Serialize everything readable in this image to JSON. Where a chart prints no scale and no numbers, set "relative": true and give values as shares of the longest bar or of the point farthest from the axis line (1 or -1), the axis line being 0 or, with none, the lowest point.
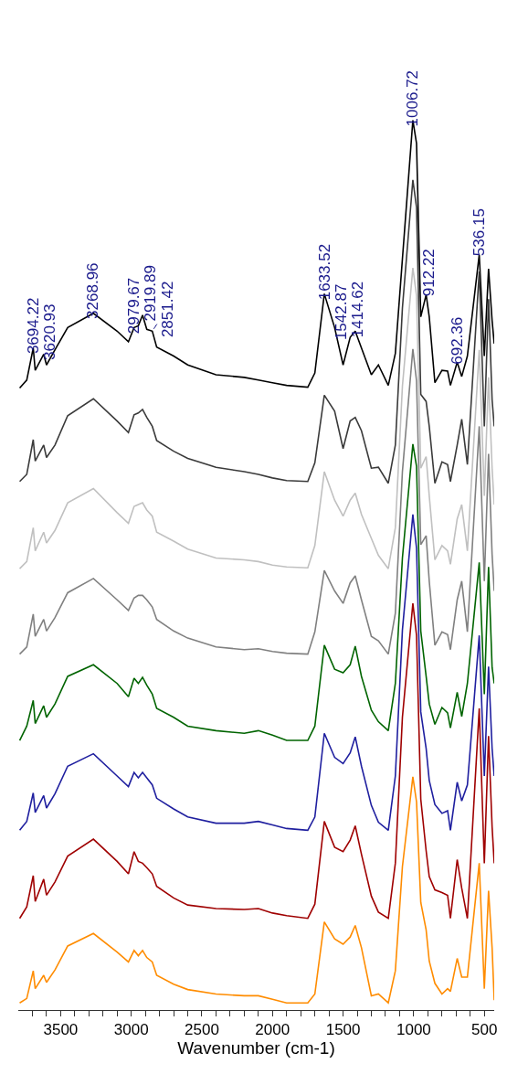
{
  "chart_data": {
    "type": "line",
    "relative": true,
    "xlabel": "Wavenumber (cm-1)",
    "xlim": [
      3800,
      430
    ],
    "xticks": [
      {
        "value": 3700,
        "label": null
      },
      {
        "value": 3600,
        "label": null
      },
      3500,
      {
        "value": 3400,
        "label": null
      },
      {
        "value": 3300,
        "label": null
      },
      {
        "value": 3200,
        "label": null
      },
      {
        "value": 3100,
        "label": null
      },
      3000,
      {
        "value": 2900,
        "label": null
      },
      {
        "value": 2800,
        "label": null
      },
      {
        "value": 2700,
        "label": null
      },
      {
        "value": 2600,
        "label": null
      },
      2500,
      {
        "value": 2400,
        "label": null
      },
      {
        "value": 2300,
        "label": null
      },
      {
        "value": 2200,
        "label": null
      },
      {
        "value": 2100,
        "label": null
      },
      2000,
      {
        "value": 1900,
        "label": null
      },
      {
        "value": 1800,
        "label": null
      },
      {
        "value": 1700,
        "label": null
      },
      {
        "value": 1600,
        "label": null
      },
      1500,
      {
        "value": 1400,
        "label": null
      },
      {
        "value": 1300,
        "label": null
      },
      {
        "value": 1200,
        "label": null
      },
      {
        "value": 1100,
        "label": null
      },
      1000,
      {
        "value": 900,
        "label": null
      },
      {
        "value": 800,
        "label": null
      },
      {
        "value": 700,
        "label": null
      },
      {
        "value": 600,
        "label": null
      },
      500
    ],
    "tick_labels": "x",
    "x": [
      3790,
      3740,
      3694,
      3680,
      3620,
      3600,
      3540,
      3450,
      3268,
      3100,
      3020,
      2980,
      2950,
      2920,
      2890,
      2851,
      2820,
      2700,
      2600,
      2400,
      2200,
      2100,
      2000,
      1900,
      1750,
      1700,
      1633,
      1560,
      1500,
      1450,
      1414,
      1370,
      1300,
      1250,
      1180,
      1130,
      1080,
      1006,
      980,
      950,
      912,
      890,
      850,
      800,
      760,
      740,
      692,
      660,
      620,
      536,
      500,
      470,
      445,
      430
    ],
    "series": [
      {
        "color": "#000000",
        "values": [
          0.699,
          0.708,
          0.744,
          0.719,
          0.737,
          0.725,
          0.742,
          0.767,
          0.783,
          0.763,
          0.751,
          0.767,
          0.769,
          0.781,
          0.765,
          0.763,
          0.745,
          0.735,
          0.725,
          0.714,
          0.711,
          0.708,
          0.705,
          0.702,
          0.7,
          0.716,
          0.805,
          0.767,
          0.725,
          0.756,
          0.763,
          0.744,
          0.714,
          0.725,
          0.702,
          0.738,
          0.844,
          1.0,
          0.974,
          0.779,
          0.804,
          0.779,
          0.705,
          0.719,
          0.718,
          0.702,
          0.728,
          0.712,
          0.735,
          0.849,
          0.735,
          0.833,
          0.775,
          0.749
        ]
      },
      {
        "color": "#3a3a3a",
        "values": [
          0.594,
          0.602,
          0.641,
          0.617,
          0.635,
          0.621,
          0.635,
          0.668,
          0.687,
          0.662,
          0.649,
          0.669,
          0.671,
          0.675,
          0.666,
          0.656,
          0.64,
          0.628,
          0.62,
          0.61,
          0.605,
          0.602,
          0.598,
          0.595,
          0.594,
          0.615,
          0.691,
          0.673,
          0.631,
          0.662,
          0.666,
          0.651,
          0.609,
          0.61,
          0.592,
          0.635,
          0.789,
          0.933,
          0.902,
          0.692,
          0.684,
          0.656,
          0.592,
          0.616,
          0.613,
          0.594,
          0.635,
          0.664,
          0.613,
          0.83,
          0.656,
          0.799,
          0.686,
          0.656
        ]
      },
      {
        "color": "#c0c0c0",
        "values": [
          0.496,
          0.504,
          0.542,
          0.516,
          0.537,
          0.525,
          0.539,
          0.57,
          0.586,
          0.559,
          0.547,
          0.566,
          0.568,
          0.57,
          0.562,
          0.555,
          0.537,
          0.527,
          0.518,
          0.508,
          0.506,
          0.504,
          0.5,
          0.498,
          0.497,
          0.522,
          0.605,
          0.573,
          0.555,
          0.573,
          0.581,
          0.557,
          0.53,
          0.511,
          0.496,
          0.542,
          0.701,
          0.834,
          0.803,
          0.609,
          0.622,
          0.578,
          0.506,
          0.522,
          0.516,
          0.501,
          0.552,
          0.568,
          0.516,
          0.742,
          0.578,
          0.711,
          0.609,
          0.568
        ]
      },
      {
        "color": "#808080",
        "values": [
          0.4,
          0.408,
          0.445,
          0.42,
          0.439,
          0.426,
          0.441,
          0.469,
          0.485,
          0.461,
          0.449,
          0.463,
          0.466,
          0.466,
          0.461,
          0.453,
          0.439,
          0.426,
          0.418,
          0.408,
          0.405,
          0.406,
          0.403,
          0.401,
          0.4,
          0.425,
          0.494,
          0.471,
          0.457,
          0.48,
          0.488,
          0.461,
          0.42,
          0.415,
          0.4,
          0.446,
          0.605,
          0.743,
          0.707,
          0.523,
          0.533,
          0.482,
          0.41,
          0.425,
          0.422,
          0.405,
          0.461,
          0.482,
          0.425,
          0.656,
          0.482,
          0.625,
          0.512,
          0.471
        ]
      },
      {
        "color": "#006400",
        "values": [
          0.303,
          0.319,
          0.348,
          0.322,
          0.342,
          0.329,
          0.344,
          0.375,
          0.388,
          0.367,
          0.352,
          0.373,
          0.367,
          0.374,
          0.365,
          0.355,
          0.339,
          0.329,
          0.319,
          0.314,
          0.311,
          0.314,
          0.309,
          0.303,
          0.303,
          0.319,
          0.41,
          0.383,
          0.379,
          0.388,
          0.409,
          0.375,
          0.337,
          0.324,
          0.314,
          0.367,
          0.508,
          0.636,
          0.611,
          0.426,
          0.375,
          0.344,
          0.321,
          0.34,
          0.334,
          0.317,
          0.357,
          0.33,
          0.367,
          0.503,
          0.355,
          0.498,
          0.385,
          0.367
        ]
      },
      {
        "color": "#1f1f9f",
        "values": [
          0.202,
          0.212,
          0.244,
          0.222,
          0.241,
          0.227,
          0.243,
          0.274,
          0.288,
          0.263,
          0.251,
          0.267,
          0.261,
          0.267,
          0.261,
          0.253,
          0.238,
          0.226,
          0.217,
          0.21,
          0.21,
          0.212,
          0.208,
          0.204,
          0.202,
          0.217,
          0.311,
          0.284,
          0.277,
          0.289,
          0.307,
          0.274,
          0.23,
          0.211,
          0.202,
          0.263,
          0.427,
          0.557,
          0.519,
          0.335,
          0.294,
          0.258,
          0.231,
          0.221,
          0.224,
          0.202,
          0.256,
          0.235,
          0.253,
          0.421,
          0.263,
          0.386,
          0.294,
          0.263
        ]
      },
      {
        "color": "#9f0000",
        "values": [
          0.103,
          0.116,
          0.151,
          0.122,
          0.147,
          0.129,
          0.144,
          0.173,
          0.192,
          0.167,
          0.153,
          0.178,
          0.167,
          0.165,
          0.16,
          0.153,
          0.139,
          0.126,
          0.118,
          0.114,
          0.113,
          0.114,
          0.109,
          0.106,
          0.103,
          0.119,
          0.212,
          0.183,
          0.178,
          0.191,
          0.207,
          0.175,
          0.128,
          0.11,
          0.103,
          0.165,
          0.329,
          0.457,
          0.421,
          0.237,
          0.179,
          0.15,
          0.135,
          0.132,
          0.129,
          0.103,
          0.169,
          0.137,
          0.103,
          0.339,
          0.165,
          0.308,
          0.206,
          0.165
        ]
      },
      {
        "color": "#ff8c00",
        "values": [
          0.008,
          0.013,
          0.044,
          0.024,
          0.039,
          0.031,
          0.045,
          0.072,
          0.086,
          0.065,
          0.054,
          0.067,
          0.061,
          0.067,
          0.059,
          0.054,
          0.039,
          0.029,
          0.023,
          0.018,
          0.016,
          0.016,
          0.012,
          0.008,
          0.008,
          0.018,
          0.099,
          0.08,
          0.074,
          0.082,
          0.095,
          0.07,
          0.016,
          0.018,
          0.008,
          0.044,
          0.161,
          0.262,
          0.234,
          0.121,
          0.09,
          0.055,
          0.03,
          0.018,
          0.024,
          0.021,
          0.058,
          0.037,
          0.037,
          0.165,
          0.024,
          0.134,
          0.07,
          0.011
        ]
      }
    ],
    "annotations": [
      {
        "text": "3694.22",
        "x": 3694.22,
        "y": 0.744
      },
      {
        "text": "3620.93",
        "x": 3620.93,
        "y": 0.737
      },
      {
        "text": "3268.96",
        "x": 3268.96,
        "y": 0.783
      },
      {
        "text": "2979.67",
        "x": 2979.67,
        "y": 0.767
      },
      {
        "text": "2919.89",
        "x": 2919.89,
        "y": 0.781
      },
      {
        "text": "2851.42",
        "x": 2851.42,
        "y": 0.763
      },
      {
        "text": "1633.52",
        "x": 1633.52,
        "y": 0.805
      },
      {
        "text": "1542.87",
        "x": 1542.87,
        "y": 0.76
      },
      {
        "text": "1414.62",
        "x": 1414.62,
        "y": 0.763
      },
      {
        "text": "1006.72",
        "x": 1006.72,
        "y": 1.0
      },
      {
        "text": "912.22",
        "x": 912.22,
        "y": 0.804
      },
      {
        "text": "692.36",
        "x": 692.36,
        "y": 0.728
      },
      {
        "text": "536.15",
        "x": 536.15,
        "y": 0.849
      }
    ]
  }
}
